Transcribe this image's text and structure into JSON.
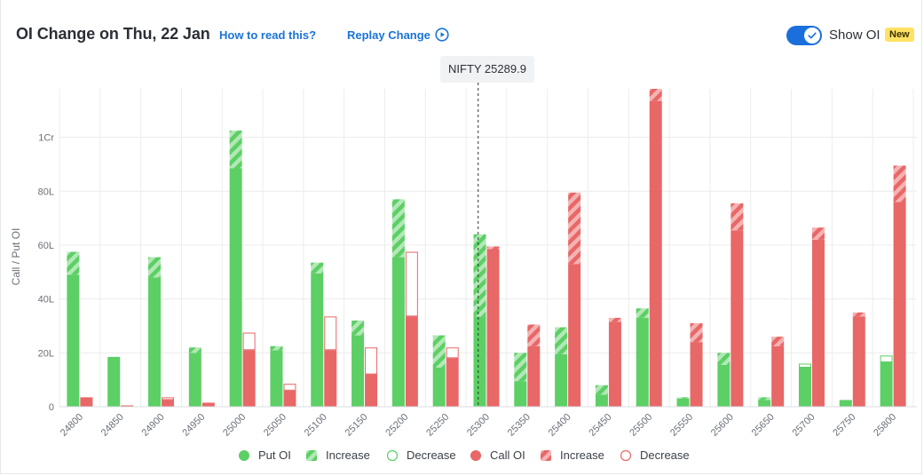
{
  "header": {
    "title": "OI Change on Thu, 22 Jan",
    "how_to_read": "How to read this?",
    "replay": "Replay Change",
    "show_oi": "Show OI",
    "badge": "New"
  },
  "spot": {
    "label": "NIFTY 25289.9",
    "value": 25289.9
  },
  "colors": {
    "put": "#5ccf65",
    "put_light": "#a9e5ad",
    "call": "#e86767",
    "call_light": "#f3aaaa",
    "grid": "#ececec"
  },
  "chart_data": {
    "type": "bar",
    "ylabel": "Call / Put OI",
    "ylim": [
      0,
      118
    ],
    "unit": "L",
    "yticks": [
      {
        "value": 0,
        "label": "0"
      },
      {
        "value": 20,
        "label": "20L"
      },
      {
        "value": 40,
        "label": "40L"
      },
      {
        "value": 60,
        "label": "60L"
      },
      {
        "value": 80,
        "label": "80L"
      },
      {
        "value": 100,
        "label": "1Cr"
      }
    ],
    "categories": [
      "24800",
      "24850",
      "24900",
      "24950",
      "25000",
      "25050",
      "25100",
      "25150",
      "25200",
      "25250",
      "25300",
      "25350",
      "25400",
      "25450",
      "25500",
      "25550",
      "25600",
      "25650",
      "25700",
      "25750",
      "25800"
    ],
    "series": [
      {
        "name": "Put OI",
        "side": "put",
        "base": [
          49,
          18.5,
          48,
          20,
          88.5,
          21,
          49.5,
          26.5,
          55.5,
          14.5,
          33.5,
          9.5,
          19.5,
          4.5,
          33,
          3,
          15.5,
          2.5,
          14.5,
          2.5,
          16.5
        ],
        "change": [
          8.5,
          0,
          7.5,
          2,
          14,
          1.5,
          4,
          5.5,
          21.5,
          12,
          30.5,
          10.5,
          10,
          3.5,
          3.5,
          0.5,
          4.5,
          1,
          1.5,
          0,
          2.5
        ]
      },
      {
        "name": "Call OI",
        "side": "call",
        "base": [
          3.5,
          0.5,
          2.5,
          1.5,
          21,
          6,
          21,
          12,
          33.5,
          18,
          58.5,
          22.5,
          53,
          31.5,
          113.5,
          24,
          65.5,
          22.5,
          62,
          33.5,
          76
        ],
        "change": [
          0,
          0,
          1,
          0,
          6.5,
          2.5,
          12.5,
          10,
          24,
          4,
          1,
          8,
          26.5,
          1.5,
          4.5,
          7,
          10,
          3.5,
          4.5,
          1.5,
          13.5
        ]
      }
    ],
    "change_type": {
      "put": [
        "increase",
        "increase",
        "increase",
        "increase",
        "increase",
        "increase",
        "increase",
        "increase",
        "increase",
        "increase",
        "increase",
        "increase",
        "increase",
        "increase",
        "increase",
        "increase",
        "increase",
        "increase",
        "decrease",
        "increase",
        "decrease"
      ],
      "call": [
        "increase",
        "increase",
        "decrease",
        "increase",
        "decrease",
        "decrease",
        "decrease",
        "decrease",
        "decrease",
        "decrease",
        "increase",
        "increase",
        "increase",
        "increase",
        "increase",
        "increase",
        "increase",
        "increase",
        "increase",
        "increase",
        "increase"
      ]
    },
    "legend": [
      {
        "label": "Put OI",
        "kind": "put-solid"
      },
      {
        "label": "Increase",
        "kind": "put-increase"
      },
      {
        "label": "Decrease",
        "kind": "put-decrease"
      },
      {
        "label": "Call OI",
        "kind": "call-solid"
      },
      {
        "label": "Increase",
        "kind": "call-increase"
      },
      {
        "label": "Decrease",
        "kind": "call-decrease"
      }
    ]
  }
}
